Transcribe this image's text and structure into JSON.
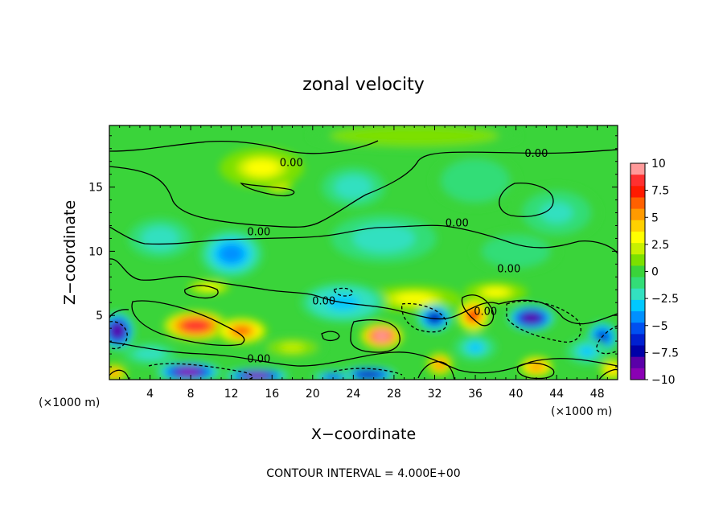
{
  "chart_data": {
    "type": "heatmap",
    "title": "zonal velocity",
    "xlabel": "X−coordinate",
    "ylabel": "Z−coordinate",
    "x_unit_left": "(×1000 m)",
    "x_unit_right": "(×1000 m)",
    "xlim": [
      0,
      50
    ],
    "ylim": [
      0,
      19.8
    ],
    "x_ticks": [
      4,
      8,
      12,
      16,
      20,
      24,
      28,
      32,
      36,
      40,
      44,
      48
    ],
    "y_ticks": [
      5,
      10,
      15
    ],
    "colorbar": {
      "ticks": [
        "10",
        "7.5",
        "5",
        "2.5",
        "0",
        "−2.5",
        "−5",
        "−7.5",
        "−10"
      ],
      "range": [
        -10,
        10
      ],
      "colors": [
        "#ff9a9a",
        "#ff3030",
        "#ff1a00",
        "#ff6000",
        "#ff9a00",
        "#ffd000",
        "#ffff00",
        "#c8f000",
        "#7ce000",
        "#3ad43a",
        "#33dd77",
        "#33e0c0",
        "#00c8ff",
        "#0090ff",
        "#0050f0",
        "#0020d0",
        "#0000a8",
        "#5a00a8",
        "#8a00b4"
      ]
    },
    "contour_labels": [
      {
        "text": "0.00",
        "x": 17.9,
        "y": 16.9
      },
      {
        "text": "0.00",
        "x": 42.0,
        "y": 17.6
      },
      {
        "text": "0.00",
        "x": 14.7,
        "y": 11.5
      },
      {
        "text": "0.00",
        "x": 34.2,
        "y": 12.2
      },
      {
        "text": "0.00",
        "x": 39.3,
        "y": 8.6
      },
      {
        "text": "0.00",
        "x": 21.1,
        "y": 6.1
      },
      {
        "text": "0.00",
        "x": 37.0,
        "y": 5.3
      },
      {
        "text": "0.00",
        "x": 14.7,
        "y": 1.6
      }
    ],
    "features": [
      {
        "x": 8.5,
        "y": 4.2,
        "v": 8.0,
        "sx": 3.0,
        "sy": 1.1
      },
      {
        "x": 13.0,
        "y": 3.8,
        "v": 6.0,
        "sx": 2.5,
        "sy": 1.0
      },
      {
        "x": 16.5,
        "y": 15.2,
        "v": 4.5,
        "sx": 1.5,
        "sy": 0.6
      },
      {
        "x": 15.0,
        "y": 16.5,
        "v": 3.0,
        "sx": 4.0,
        "sy": 1.5
      },
      {
        "x": 26.8,
        "y": 3.4,
        "v": 9.0,
        "sx": 2.0,
        "sy": 1.0
      },
      {
        "x": 35.8,
        "y": 5.0,
        "v": 7.0,
        "sx": 1.5,
        "sy": 1.2
      },
      {
        "x": 42.0,
        "y": 1.0,
        "v": 5.5,
        "sx": 1.6,
        "sy": 0.8
      },
      {
        "x": 32.5,
        "y": 1.2,
        "v": 5.0,
        "sx": 1.3,
        "sy": 0.9
      },
      {
        "x": 0.5,
        "y": 0.5,
        "v": 5.0,
        "sx": 1.2,
        "sy": 0.7
      },
      {
        "x": 49.5,
        "y": 0.8,
        "v": 4.0,
        "sx": 1.2,
        "sy": 0.8
      },
      {
        "x": 9.8,
        "y": 7.2,
        "v": 3.5,
        "sx": 2.0,
        "sy": 0.5
      },
      {
        "x": 30.0,
        "y": 6.3,
        "v": 3.0,
        "sx": 4.5,
        "sy": 1.0
      },
      {
        "x": 38.0,
        "y": 6.8,
        "v": 3.0,
        "sx": 3.0,
        "sy": 0.8
      },
      {
        "x": 32.0,
        "y": 4.8,
        "v": -7.0,
        "sx": 1.6,
        "sy": 1.0
      },
      {
        "x": 41.5,
        "y": 4.8,
        "v": -8.0,
        "sx": 2.2,
        "sy": 1.0
      },
      {
        "x": 48.5,
        "y": 3.3,
        "v": -6.0,
        "sx": 1.5,
        "sy": 1.2
      },
      {
        "x": 0.8,
        "y": 3.8,
        "v": -8.0,
        "sx": 1.6,
        "sy": 1.4
      },
      {
        "x": 7.8,
        "y": 0.6,
        "v": -9.0,
        "sx": 3.0,
        "sy": 0.8
      },
      {
        "x": 14.5,
        "y": 0.3,
        "v": -9.0,
        "sx": 3.0,
        "sy": 0.6
      },
      {
        "x": 25.5,
        "y": 0.4,
        "v": -7.5,
        "sx": 2.6,
        "sy": 0.6
      },
      {
        "x": 22.0,
        "y": 0.2,
        "v": -5.0,
        "sx": 2.0,
        "sy": 0.5
      },
      {
        "x": 12.0,
        "y": 9.8,
        "v": -4.0,
        "sx": 3.0,
        "sy": 1.8
      },
      {
        "x": 23.0,
        "y": 6.0,
        "v": -3.5,
        "sx": 4.0,
        "sy": 1.5
      },
      {
        "x": 27.0,
        "y": 11.0,
        "v": -2.5,
        "sx": 5.0,
        "sy": 1.8
      },
      {
        "x": 24.0,
        "y": 15.0,
        "v": -2.2,
        "sx": 3.0,
        "sy": 1.5
      },
      {
        "x": 5.0,
        "y": 11.0,
        "v": -2.5,
        "sx": 3.0,
        "sy": 1.5
      },
      {
        "x": 44.0,
        "y": 13.0,
        "v": -2.0,
        "sx": 4.0,
        "sy": 2.0
      },
      {
        "x": 36.0,
        "y": 15.5,
        "v": -1.2,
        "sx": 4.0,
        "sy": 2.0
      },
      {
        "x": 40.0,
        "y": 10.0,
        "v": -1.5,
        "sx": 4.0,
        "sy": 1.5
      },
      {
        "x": 4.0,
        "y": 2.0,
        "v": -2.5,
        "sx": 2.5,
        "sy": 0.8
      },
      {
        "x": 47.0,
        "y": 2.2,
        "v": -3.0,
        "sx": 2.0,
        "sy": 1.0
      },
      {
        "x": 36.0,
        "y": 2.5,
        "v": -3.0,
        "sx": 2.0,
        "sy": 1.0
      },
      {
        "x": 30.0,
        "y": 19.0,
        "v": 1.5,
        "sx": 10.0,
        "sy": 1.0
      },
      {
        "x": 18.0,
        "y": 2.5,
        "v": 2.0,
        "sx": 3.0,
        "sy": 0.8
      }
    ],
    "contour_interval_text": "CONTOUR INTERVAL = 4.000E+00"
  }
}
